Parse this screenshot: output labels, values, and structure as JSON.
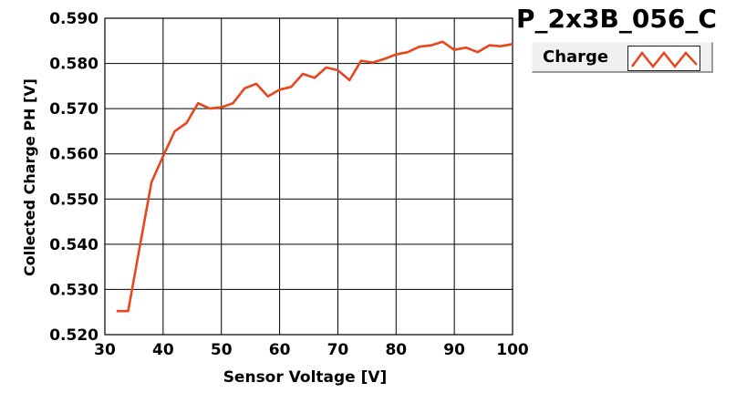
{
  "chart_data": {
    "type": "line",
    "title": "P_2x3B_056_C",
    "xlabel": "Sensor Voltage [V]",
    "ylabel": "Collected Charge PH [V]",
    "xlim": [
      30,
      100
    ],
    "ylim": [
      0.52,
      0.59
    ],
    "x_ticks": [
      "30",
      "40",
      "50",
      "60",
      "70",
      "80",
      "90",
      "100"
    ],
    "y_ticks": [
      "0.520",
      "0.530",
      "0.540",
      "0.550",
      "0.560",
      "0.570",
      "0.580",
      "0.590"
    ],
    "grid": true,
    "legend_position": "top-right",
    "series": [
      {
        "name": "Charge",
        "color": "#e8461c",
        "x": [
          32,
          34,
          36,
          38,
          40,
          42,
          44,
          46,
          48,
          50,
          52,
          54,
          56,
          58,
          60,
          62,
          64,
          66,
          68,
          70,
          72,
          74,
          76,
          78,
          80,
          82,
          84,
          86,
          88,
          90,
          92,
          94,
          96,
          98,
          100
        ],
        "y": [
          0.5252,
          0.5252,
          0.5395,
          0.5537,
          0.5595,
          0.565,
          0.5668,
          0.5712,
          0.57,
          0.5703,
          0.5712,
          0.5745,
          0.5755,
          0.5727,
          0.5742,
          0.5748,
          0.5777,
          0.5768,
          0.5791,
          0.5785,
          0.5763,
          0.5806,
          0.5802,
          0.581,
          0.582,
          0.5825,
          0.5837,
          0.584,
          0.5848,
          0.583,
          0.5835,
          0.5825,
          0.584,
          0.5838,
          0.5843
        ]
      }
    ]
  }
}
